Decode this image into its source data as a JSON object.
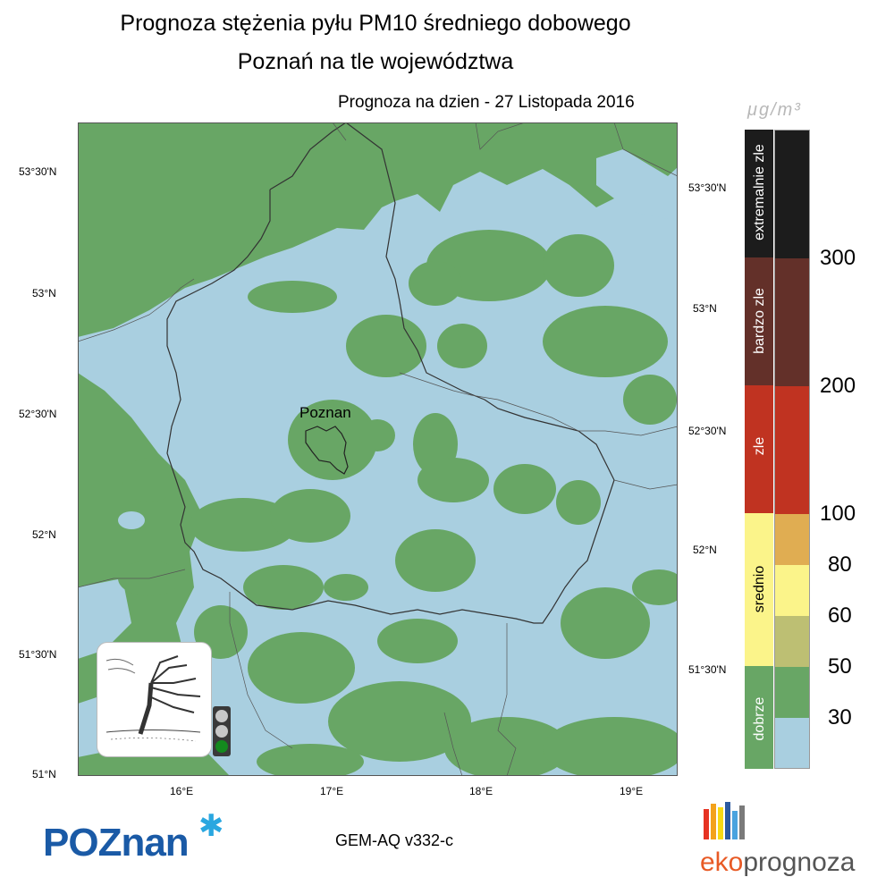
{
  "header": {
    "title_line1": "Prognoza stężenia pyłu PM10 średniego dobowego",
    "title_line2": "Poznań na tle województwa",
    "forecast_date": "Prognoza na dzien -  27 Listopada 2016"
  },
  "map": {
    "city_label": "Poznan",
    "lat_ticks_left": [
      "53°30'N",
      "53°N",
      "52°30'N",
      "52°N",
      "51°30'N",
      "51°N"
    ],
    "lat_ticks_right": [
      "53°30'N",
      "53°N",
      "52°30'N",
      "52°N",
      "51°30'N"
    ],
    "lon_ticks": [
      "16°E",
      "17°E",
      "18°E",
      "19°E"
    ],
    "colors": {
      "clean": "#a9cfe0",
      "good": "#68a665",
      "border": "#333333"
    }
  },
  "legend": {
    "unit": "μg/m³",
    "categories": [
      {
        "label": "extremalnie zle",
        "color": "#1c1c1c"
      },
      {
        "label": "bardzo zle",
        "color": "#633029"
      },
      {
        "label": "zle",
        "color": "#c03321"
      },
      {
        "label": "srednio",
        "color": "#fbf48a"
      },
      {
        "label": "dobrze",
        "color": "#68a665"
      }
    ],
    "scale_colors": [
      "#1c1c1c",
      "#633029",
      "#c03321",
      "#e0ad52",
      "#fbf48a",
      "#bdbf73",
      "#68a665",
      "#a9cfe0"
    ],
    "thresholds": [
      "300",
      "200",
      "100",
      "80",
      "60",
      "50",
      "30"
    ]
  },
  "indicator": {
    "traffic_light": {
      "active": "green",
      "colors": {
        "off": "#c8c8c8",
        "green": "#148a1e"
      }
    }
  },
  "footer": {
    "logo_text": "POZnan",
    "model": "GEM-AQ v332-c",
    "brand_eko": "eko",
    "brand_prognoza": "prognoza",
    "brand_bar_colors": [
      "#e63323",
      "#f3a21c",
      "#f7d915",
      "#2c5aa0",
      "#4aa3df",
      "#7a7a7a"
    ]
  }
}
